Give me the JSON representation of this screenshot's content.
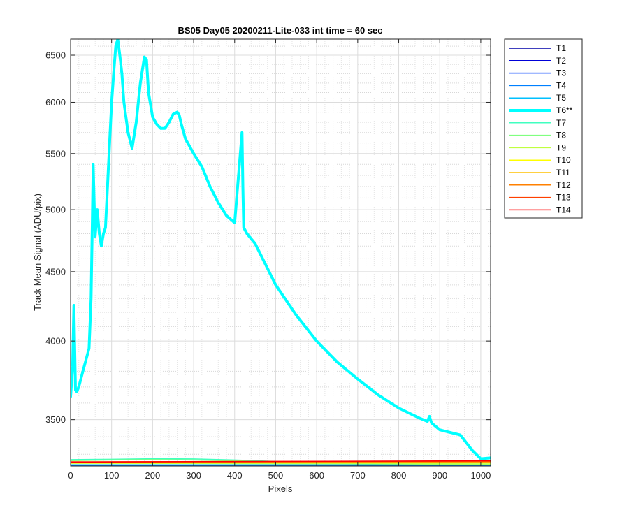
{
  "chart_data": {
    "type": "line",
    "title": "BS05 Day05 20200211-Lite-033 int time = 60 sec",
    "xlabel": "Pixels",
    "ylabel": "Track Mean Signal (ADU/pix)",
    "xlim": [
      0,
      1024
    ],
    "ylim": [
      3235,
      6680
    ],
    "y_scale": "log",
    "grid": "on (major and minor)",
    "legend_placement": "outside-right-top",
    "x_ticks": [
      "0",
      "100",
      "200",
      "300",
      "400",
      "500",
      "600",
      "700",
      "800",
      "900",
      "1000"
    ],
    "y_ticks": [
      "3500",
      "4000",
      "4500",
      "5000",
      "5500",
      "6000",
      "6500"
    ],
    "series": [
      {
        "name": "T1",
        "color": "#0000a8",
        "width": 1.5,
        "x": [
          0,
          1024
        ],
        "y": [
          3235,
          3235
        ]
      },
      {
        "name": "T2",
        "color": "#0000d8",
        "width": 1.5,
        "x": [
          0,
          1024
        ],
        "y": [
          3236,
          3236
        ]
      },
      {
        "name": "T3",
        "color": "#0040ff",
        "width": 1.5,
        "x": [
          0,
          1024
        ],
        "y": [
          3238,
          3238
        ]
      },
      {
        "name": "T4",
        "color": "#0080ff",
        "width": 1.5,
        "x": [
          0,
          1024
        ],
        "y": [
          3240,
          3240
        ]
      },
      {
        "name": "T5",
        "color": "#00c0ff",
        "width": 1.5,
        "x": [
          0,
          1024
        ],
        "y": [
          3242,
          3242
        ]
      },
      {
        "name": "T6**",
        "color": "#00ffff",
        "width": 4,
        "x": [
          0,
          5,
          8,
          12,
          15,
          20,
          30,
          40,
          45,
          50,
          53,
          55,
          58,
          60,
          65,
          70,
          75,
          80,
          85,
          90,
          95,
          100,
          105,
          110,
          115,
          120,
          125,
          130,
          140,
          150,
          160,
          170,
          180,
          185,
          190,
          200,
          210,
          220,
          230,
          240,
          250,
          260,
          265,
          270,
          280,
          300,
          320,
          340,
          360,
          380,
          400,
          418,
          420,
          422,
          430,
          450,
          500,
          550,
          600,
          650,
          700,
          750,
          800,
          850,
          870,
          875,
          880,
          890,
          900,
          950,
          980,
          1000,
          1024
        ],
        "y": [
          3640,
          3830,
          4250,
          3680,
          3670,
          3700,
          3800,
          3900,
          3950,
          4300,
          4900,
          5400,
          5000,
          4780,
          5000,
          4800,
          4700,
          4800,
          4850,
          5200,
          5600,
          6000,
          6300,
          6600,
          6680,
          6500,
          6300,
          6000,
          5700,
          5550,
          5800,
          6200,
          6480,
          6450,
          6100,
          5850,
          5780,
          5740,
          5740,
          5800,
          5880,
          5900,
          5870,
          5780,
          5640,
          5500,
          5380,
          5200,
          5060,
          4950,
          4890,
          5700,
          5200,
          4850,
          4800,
          4720,
          4400,
          4180,
          4000,
          3860,
          3750,
          3650,
          3570,
          3510,
          3490,
          3520,
          3480,
          3460,
          3440,
          3410,
          3320,
          3275,
          3280
        ]
      },
      {
        "name": "T7",
        "color": "#40ffc0",
        "width": 1.5,
        "x": [
          0,
          100,
          200,
          300,
          400,
          500,
          700,
          1024
        ],
        "y": [
          3270,
          3272,
          3275,
          3274,
          3268,
          3260,
          3250,
          3245
        ]
      },
      {
        "name": "T8",
        "color": "#80ff80",
        "width": 1.5,
        "x": [
          0,
          100,
          200,
          300,
          400,
          500,
          700,
          1024
        ],
        "y": [
          3265,
          3268,
          3270,
          3268,
          3264,
          3256,
          3248,
          3244
        ]
      },
      {
        "name": "T9",
        "color": "#c0ff40",
        "width": 1.5,
        "x": [
          0,
          1024
        ],
        "y": [
          3250,
          3247
        ]
      },
      {
        "name": "T10",
        "color": "#ffff00",
        "width": 1.5,
        "x": [
          0,
          1024
        ],
        "y": [
          3252,
          3254
        ]
      },
      {
        "name": "T11",
        "color": "#ffc000",
        "width": 1.5,
        "x": [
          0,
          1024
        ],
        "y": [
          3254,
          3256
        ]
      },
      {
        "name": "T12",
        "color": "#ff8000",
        "width": 1.5,
        "x": [
          0,
          1024
        ],
        "y": [
          3256,
          3259
        ]
      },
      {
        "name": "T13",
        "color": "#ff4000",
        "width": 1.5,
        "x": [
          0,
          1024
        ],
        "y": [
          3258,
          3262
        ]
      },
      {
        "name": "T14",
        "color": "#ff0000",
        "width": 1.5,
        "x": [
          0,
          1024
        ],
        "y": [
          3257,
          3264
        ]
      }
    ]
  }
}
